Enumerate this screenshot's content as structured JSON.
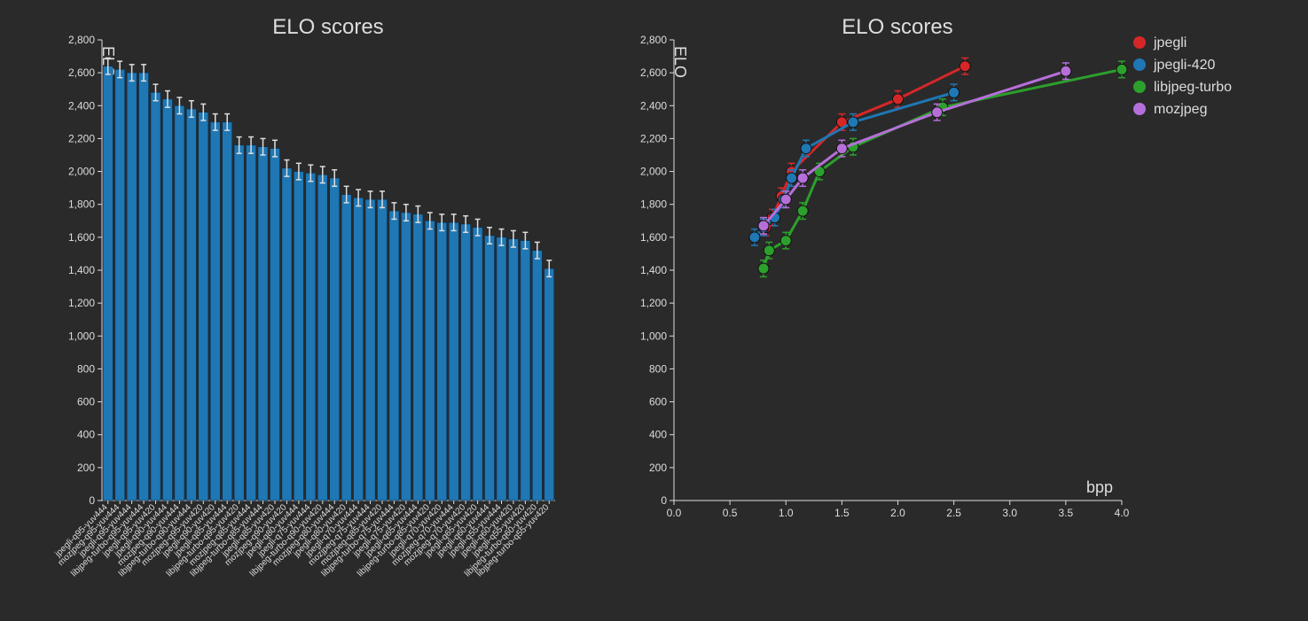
{
  "background_color": "#2a2a2a",
  "text_color": "#dddddd",
  "bar_chart": {
    "type": "bar",
    "title": "ELO scores",
    "title_fontsize": 24,
    "y_axis_title": "ELO",
    "ylim": [
      0,
      2800
    ],
    "ytick_step": 200,
    "bar_color": "#1f77b4",
    "bar_edge_color": "#062a4a",
    "error_bar_color": "#dddddd",
    "error_half": 50,
    "tick_fontsize": 12,
    "xlabel_fontsize": 10,
    "bars": [
      {
        "label": "jpegli-q95-yuv444",
        "value": 2640
      },
      {
        "label": "mozjpeg-q95-yuv444",
        "value": 2620
      },
      {
        "label": "jpegli-q95-yuv444",
        "value": 2600
      },
      {
        "label": "libjpeg-turbo-q95-yuv444",
        "value": 2600
      },
      {
        "label": "jpegli-q95-yuv420",
        "value": 2480
      },
      {
        "label": "jpegli-q90-yuv444",
        "value": 2440
      },
      {
        "label": "mozjpeg-q90-yuv444",
        "value": 2400
      },
      {
        "label": "libjpeg-turbo-q90-yuv444",
        "value": 2380
      },
      {
        "label": "mozjpeg-q95-yuv420",
        "value": 2360
      },
      {
        "label": "jpegli-q90-yuv420",
        "value": 2300
      },
      {
        "label": "jpegli-q85-yuv444",
        "value": 2300
      },
      {
        "label": "libjpeg-turbo-q95-yuv420",
        "value": 2160
      },
      {
        "label": "mozjpeg-q85-yuv444",
        "value": 2160
      },
      {
        "label": "libjpeg-turbo-q85-yuv444",
        "value": 2150
      },
      {
        "label": "jpegli-q85-yuv420",
        "value": 2140
      },
      {
        "label": "mozjpeg-q90-yuv420",
        "value": 2020
      },
      {
        "label": "jpegli-q80-yuv444",
        "value": 2000
      },
      {
        "label": "jpegli-q75-yuv444",
        "value": 1990
      },
      {
        "label": "libjpeg-turbo-q90-yuv420",
        "value": 1980
      },
      {
        "label": "mozjpeg-q80-yuv444",
        "value": 1960
      },
      {
        "label": "jpegli-q80-yuv420",
        "value": 1860
      },
      {
        "label": "jpegli-q70-yuv444",
        "value": 1840
      },
      {
        "label": "mozjpeg-q75-yuv444",
        "value": 1830
      },
      {
        "label": "mozjpeg-q85-yuv420",
        "value": 1830
      },
      {
        "label": "libjpeg-turbo-q75-yuv444",
        "value": 1760
      },
      {
        "label": "jpegli-q75-yuv420",
        "value": 1750
      },
      {
        "label": "jpegli-q65-yuv444",
        "value": 1740
      },
      {
        "label": "libjpeg-turbo-q85-yuv420",
        "value": 1700
      },
      {
        "label": "jpegli-q70-yuv420",
        "value": 1690
      },
      {
        "label": "mozjpeg-q70-yuv444",
        "value": 1690
      },
      {
        "label": "mozjpeg-q70-yuv420",
        "value": 1680
      },
      {
        "label": "jpegli-q65-yuv420",
        "value": 1660
      },
      {
        "label": "jpegli-q60-yuv444",
        "value": 1610
      },
      {
        "label": "jpegli-q55-yuv444",
        "value": 1600
      },
      {
        "label": "jpegli-q60-yuv420",
        "value": 1590
      },
      {
        "label": "jpegli-q55-yuv420",
        "value": 1580
      },
      {
        "label": "libjpeg-turbo-q60-yuv420",
        "value": 1520
      },
      {
        "label": "libjpeg-turbo-q55-yuv420",
        "value": 1410
      }
    ]
  },
  "line_chart": {
    "type": "scatter-line",
    "title": "ELO scores",
    "title_fontsize": 24,
    "y_axis_title": "ELO",
    "x_axis_title": "bpp",
    "ylim": [
      0,
      2800
    ],
    "ytick_step": 200,
    "xlim": [
      0.0,
      4.0
    ],
    "xtick_step": 0.5,
    "marker_radius": 6,
    "line_width": 3,
    "error_half": 50,
    "tick_fontsize": 12,
    "legend_fontsize": 16,
    "series": [
      {
        "name": "jpegli",
        "color": "#d62728",
        "points": [
          {
            "x": 0.82,
            "y": 1660
          },
          {
            "x": 0.88,
            "y": 1720
          },
          {
            "x": 0.96,
            "y": 1850
          },
          {
            "x": 1.05,
            "y": 2000
          },
          {
            "x": 1.5,
            "y": 2300
          },
          {
            "x": 2.0,
            "y": 2440
          },
          {
            "x": 2.6,
            "y": 2640
          }
        ]
      },
      {
        "name": "jpegli-420",
        "color": "#1f77b4",
        "points": [
          {
            "x": 0.72,
            "y": 1600
          },
          {
            "x": 0.8,
            "y": 1660
          },
          {
            "x": 0.9,
            "y": 1720
          },
          {
            "x": 0.98,
            "y": 1830
          },
          {
            "x": 1.05,
            "y": 1960
          },
          {
            "x": 1.18,
            "y": 2140
          },
          {
            "x": 1.6,
            "y": 2300
          },
          {
            "x": 2.5,
            "y": 2480
          }
        ]
      },
      {
        "name": "libjpeg-turbo",
        "color": "#2ca02c",
        "points": [
          {
            "x": 0.8,
            "y": 1410
          },
          {
            "x": 0.85,
            "y": 1520
          },
          {
            "x": 1.0,
            "y": 1580
          },
          {
            "x": 1.15,
            "y": 1760
          },
          {
            "x": 1.3,
            "y": 2000
          },
          {
            "x": 1.6,
            "y": 2150
          },
          {
            "x": 2.4,
            "y": 2390
          },
          {
            "x": 4.0,
            "y": 2620
          }
        ]
      },
      {
        "name": "mozjpeg",
        "color": "#b66fd9",
        "points": [
          {
            "x": 0.8,
            "y": 1670
          },
          {
            "x": 1.0,
            "y": 1830
          },
          {
            "x": 1.15,
            "y": 1960
          },
          {
            "x": 1.5,
            "y": 2140
          },
          {
            "x": 2.35,
            "y": 2360
          },
          {
            "x": 3.5,
            "y": 2610
          }
        ]
      }
    ]
  }
}
